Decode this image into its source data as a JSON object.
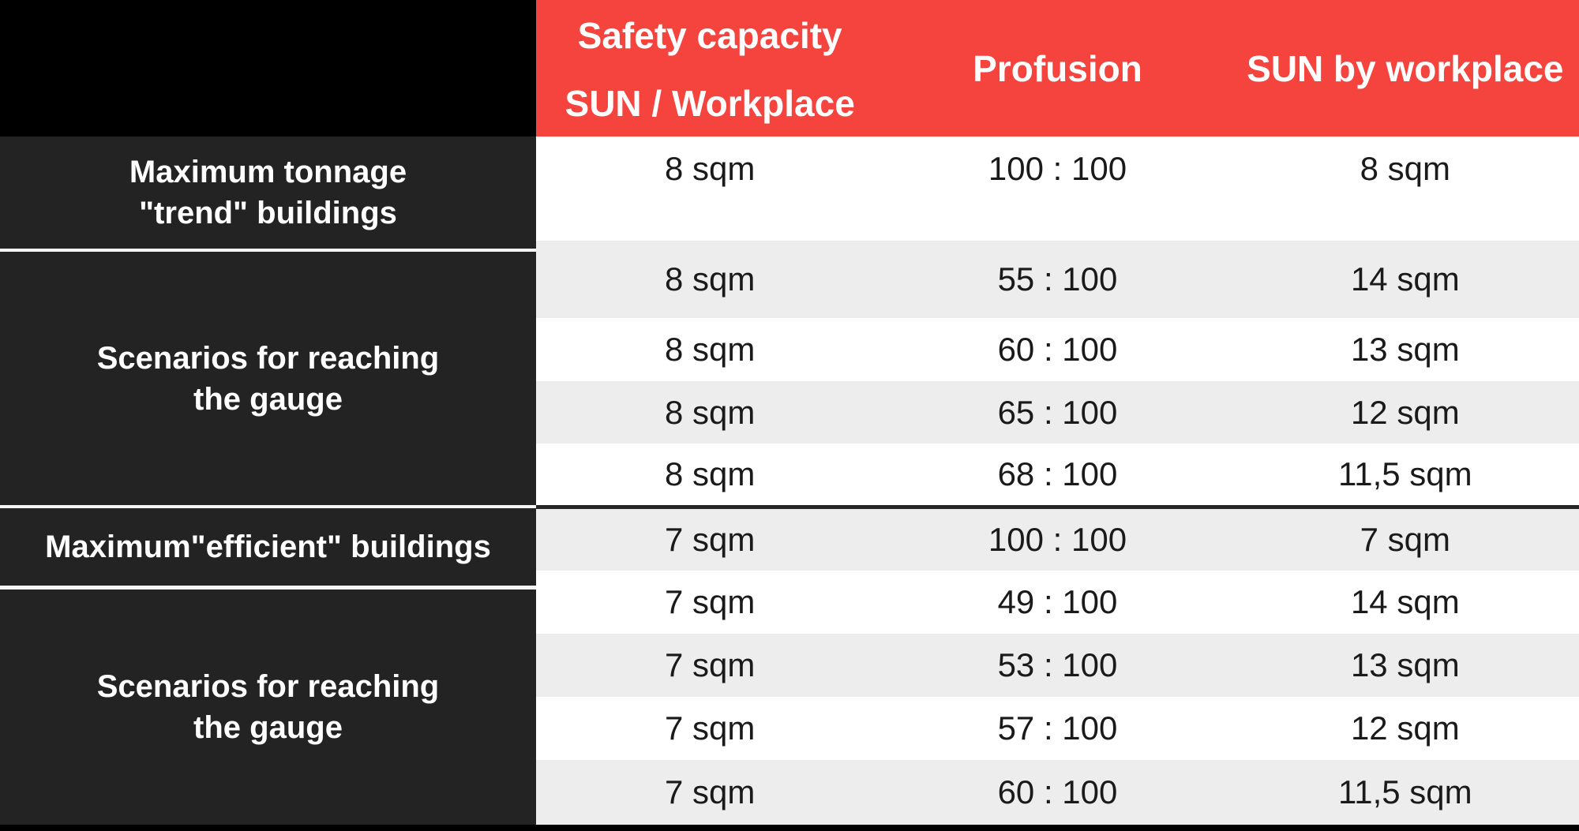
{
  "table": {
    "header": {
      "capacity_line1": "Safety capacity",
      "capacity_line2": "SUN / Workplace",
      "profusion": "Profusion",
      "sun_by_workplace": "SUN by workplace"
    },
    "row_labels": [
      {
        "label": "Maximum tonnage\n\"trend\" buildings"
      },
      {
        "label": "Scenarios for reaching\nthe gauge"
      },
      {
        "label": "Maximum\"efficient\" buildings"
      },
      {
        "label": "Scenarios for reaching\nthe gauge"
      }
    ],
    "rows": [
      {
        "capacity": "8 sqm",
        "profusion": "100 : 100",
        "sun": "8 sqm"
      },
      {
        "capacity": "8 sqm",
        "profusion": "55 : 100",
        "sun": "14 sqm"
      },
      {
        "capacity": "8 sqm",
        "profusion": "60 : 100",
        "sun": "13 sqm"
      },
      {
        "capacity": "8 sqm",
        "profusion": "65 : 100",
        "sun": "12 sqm"
      },
      {
        "capacity": "8 sqm",
        "profusion": "68 : 100",
        "sun": "11,5 sqm"
      },
      {
        "capacity": "7 sqm",
        "profusion": "100 : 100",
        "sun": "7 sqm"
      },
      {
        "capacity": "7 sqm",
        "profusion": "49 : 100",
        "sun": "14 sqm"
      },
      {
        "capacity": "7 sqm",
        "profusion": "53 : 100",
        "sun": "13 sqm"
      },
      {
        "capacity": "7 sqm",
        "profusion": "57 : 100",
        "sun": "12 sqm"
      },
      {
        "capacity": "7 sqm",
        "profusion": "60 : 100",
        "sun": "11,5 sqm"
      }
    ],
    "colors": {
      "header_red": "#F4443D",
      "label_panel_dark": "#232323",
      "frame_black": "#000000",
      "row_alt_gray": "#EDEDED",
      "row_white": "#FFFFFF",
      "text_dark": "#1A1A1A",
      "text_white": "#FFFFFF"
    }
  }
}
